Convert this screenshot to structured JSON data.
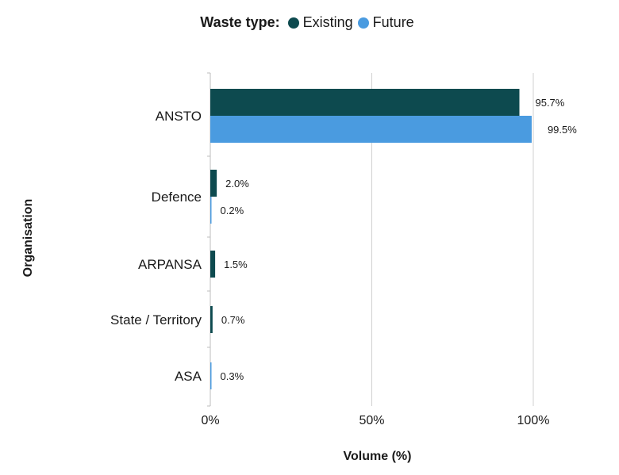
{
  "chart_data": {
    "type": "bar",
    "orientation": "horizontal",
    "legend_title": "Waste type:",
    "categories": [
      "ANSTO",
      "Defence",
      "ARPANSA",
      "State / Territory",
      "ASA"
    ],
    "series": [
      {
        "name": "Existing",
        "color": "#0d4a4f",
        "values": [
          95.7,
          2.0,
          1.5,
          0.7,
          null
        ],
        "labels": [
          "95.7%",
          "2.0%",
          "1.5%",
          "0.7%",
          null
        ]
      },
      {
        "name": "Future",
        "color": "#4a9be0",
        "values": [
          99.5,
          0.2,
          null,
          null,
          0.3
        ],
        "labels": [
          "99.5%",
          "0.2%",
          null,
          null,
          "0.3%"
        ]
      }
    ],
    "xlabel": "Volume (%)",
    "ylabel": "Organisation",
    "xlim": [
      0,
      100
    ],
    "xticks": [
      0,
      50,
      100
    ],
    "xtick_labels": [
      "0%",
      "50%",
      "100%"
    ],
    "grid": true,
    "legend_position": "top-center"
  }
}
